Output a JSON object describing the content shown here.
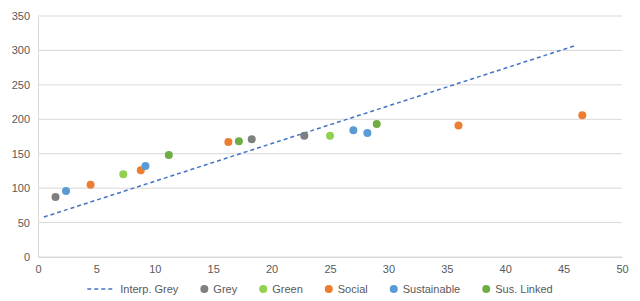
{
  "chart_data": {
    "type": "scatter",
    "xlim": [
      0,
      50
    ],
    "xticks": [
      0,
      5,
      10,
      15,
      20,
      25,
      30,
      35,
      40,
      45,
      50
    ],
    "ylim": [
      0,
      350
    ],
    "yticks": [
      0,
      50,
      100,
      150,
      200,
      250,
      300,
      350
    ],
    "grid": true,
    "legend": "bottom",
    "series": [
      {
        "name": "Interp. Grey",
        "type": "line",
        "line_style": "dashed",
        "color": "#4472c4",
        "x": [
          0.5,
          46
        ],
        "values": [
          58,
          307
        ]
      },
      {
        "name": "Grey",
        "type": "scatter",
        "marker": "circle",
        "color": "#7f7f7f",
        "x": [
          1.5,
          18.3,
          22.8
        ],
        "values": [
          87,
          171,
          176
        ]
      },
      {
        "name": "Green",
        "type": "scatter",
        "marker": "circle",
        "color": "#92d050",
        "x": [
          7.3,
          25
        ],
        "values": [
          120,
          176
        ]
      },
      {
        "name": "Social",
        "type": "scatter",
        "marker": "circle",
        "color": "#ed7d31",
        "x": [
          4.5,
          8.8,
          16.3,
          36,
          46.6
        ],
        "values": [
          105,
          126,
          167,
          191,
          206
        ]
      },
      {
        "name": "Sustainable",
        "type": "scatter",
        "marker": "circle",
        "color": "#5b9bd5",
        "x": [
          2.4,
          9.2,
          27,
          28.2
        ],
        "values": [
          96,
          132,
          184,
          180
        ]
      },
      {
        "name": "Sus. Linked",
        "type": "scatter",
        "marker": "circle",
        "color": "#70ad47",
        "x": [
          11.2,
          17.2,
          29
        ],
        "values": [
          148,
          168,
          193
        ]
      }
    ]
  }
}
